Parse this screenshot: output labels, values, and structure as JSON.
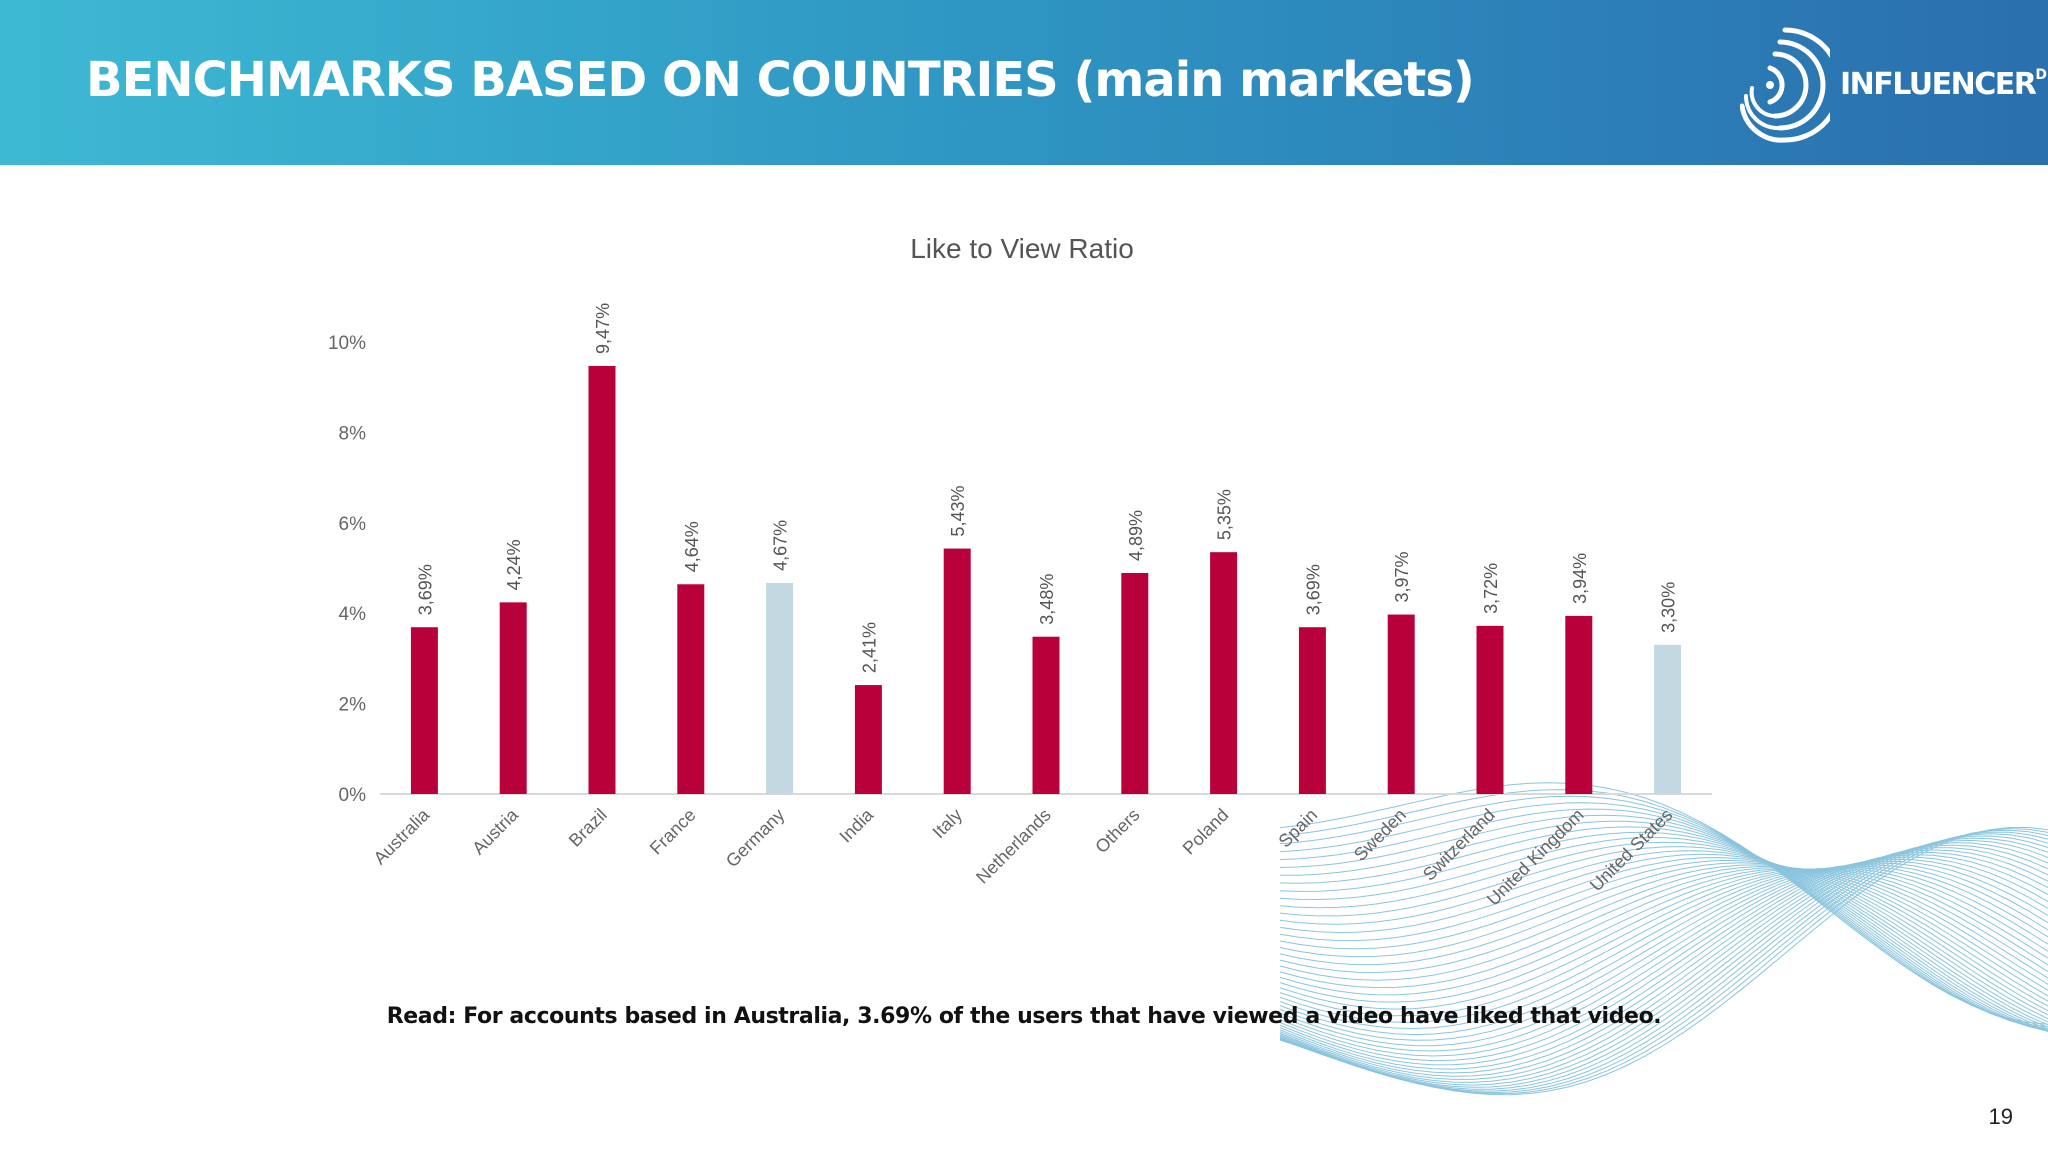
{
  "header": {
    "title": "BENCHMARKS BASED ON COUNTRIES (main markets)"
  },
  "logo": {
    "text": "INFLUENCER",
    "sup": "DB"
  },
  "chart_data": {
    "type": "bar",
    "title": "Like to View Ratio",
    "categories": [
      "Australia",
      "Austria",
      "Brazil",
      "France",
      "Germany",
      "India",
      "Italy",
      "Netherlands",
      "Others",
      "Poland",
      "Spain",
      "Sweden",
      "Switzerland",
      "United Kingdom",
      "United States"
    ],
    "values": [
      3.69,
      4.24,
      9.47,
      4.64,
      4.67,
      2.41,
      5.43,
      3.48,
      4.89,
      5.35,
      3.69,
      3.97,
      3.72,
      3.94,
      3.3
    ],
    "data_labels": [
      "3,69%",
      "4,24%",
      "9,47%",
      "4,64%",
      "4,67%",
      "2,41%",
      "5,43%",
      "3,48%",
      "4,89%",
      "5,35%",
      "3,69%",
      "3,97%",
      "3,72%",
      "3,94%",
      "3,30%"
    ],
    "highlighted": [
      "Germany",
      "United States"
    ],
    "colors": {
      "default": "#b8003a",
      "highlight": "#c3d8e0"
    },
    "ylim": [
      0,
      10
    ],
    "yticks": [
      0,
      2,
      4,
      6,
      8,
      10
    ],
    "ytick_labels": [
      "0%",
      "2%",
      "4%",
      "6%",
      "8%",
      "10%"
    ],
    "xlabel": "",
    "ylabel": "",
    "grid": false
  },
  "caption": "Read: For accounts based in Australia, 3.69% of the users that have viewed a video have liked that video.",
  "page_number": "19"
}
